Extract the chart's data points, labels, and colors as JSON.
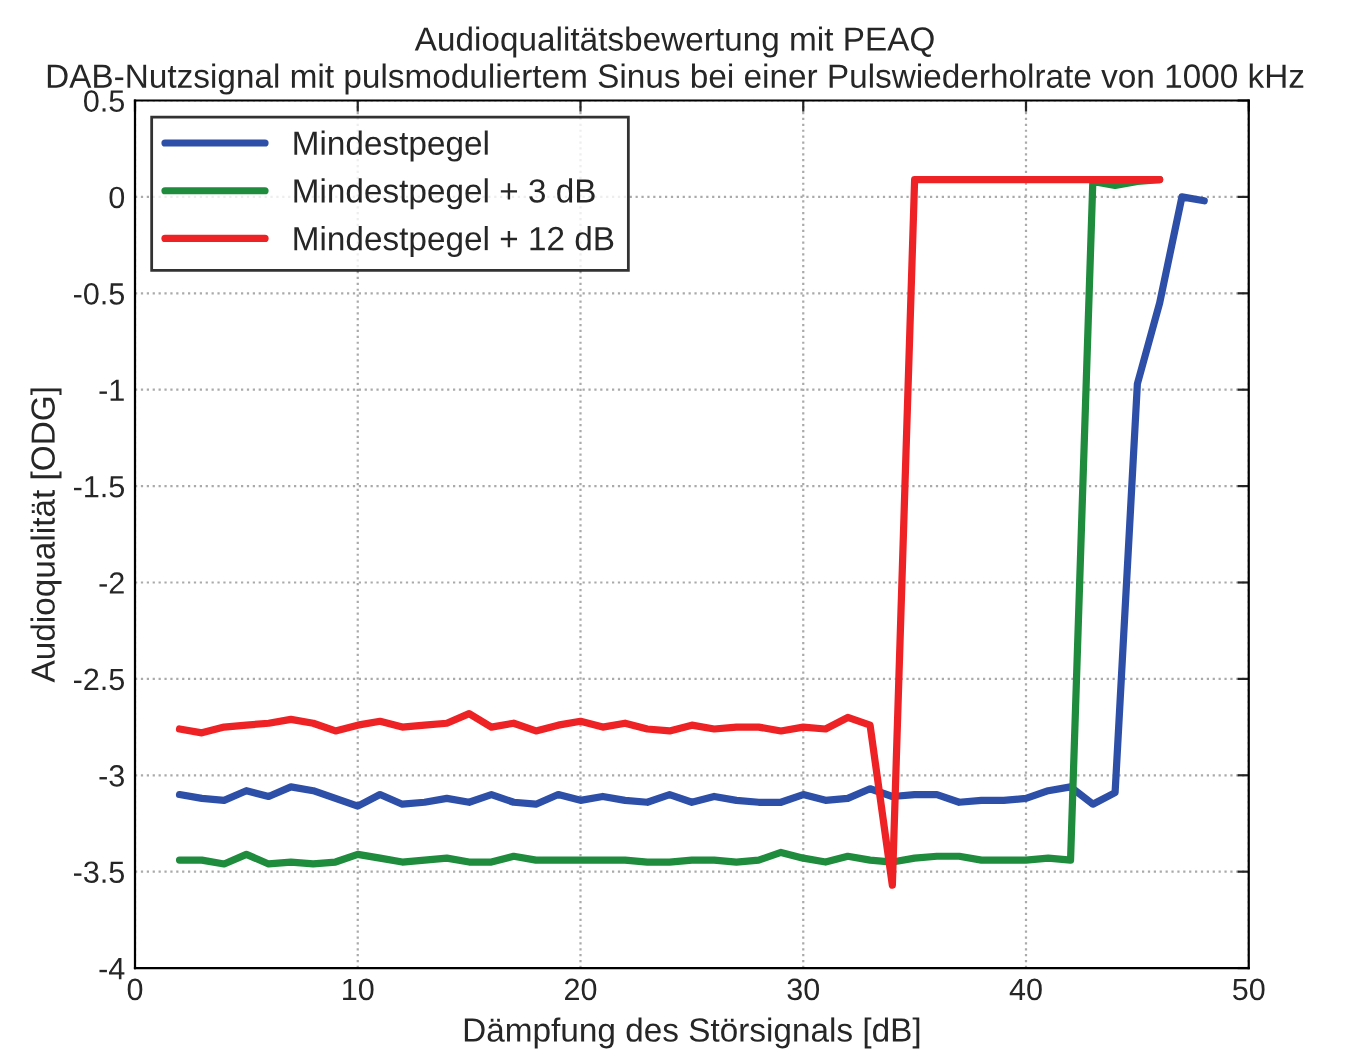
{
  "chart_data": {
    "type": "line",
    "title": "Audioqualitätsbewertung mit PEAQ",
    "subtitle": "DAB-Nutzsignal mit pulsmoduliertem Sinus bei einer Pulswiederholrate von 1000 kHz",
    "xlabel": "Dämpfung des Störsignals [dB]",
    "ylabel": "Audioqualität [ODG]",
    "xlim": [
      0,
      50
    ],
    "xticks": [
      0,
      10,
      20,
      30,
      40,
      50
    ],
    "ylim": [
      -4,
      0.5
    ],
    "yticks": [
      -4,
      -3.5,
      -3,
      -2.5,
      -2,
      -1.5,
      -1,
      -0.5,
      0,
      0.5
    ],
    "grid": true,
    "legend": "top left",
    "line_style": "solid",
    "marker": "none",
    "series": [
      {
        "name": "Mindestpegel",
        "color": "#2e4fa8",
        "x": [
          2,
          3,
          4,
          5,
          6,
          7,
          8,
          9,
          10,
          11,
          12,
          13,
          14,
          15,
          16,
          17,
          18,
          19,
          20,
          21,
          22,
          23,
          24,
          25,
          26,
          27,
          28,
          29,
          30,
          31,
          32,
          33,
          34,
          35,
          36,
          37,
          38,
          39,
          40,
          41,
          42,
          43,
          44,
          45,
          46,
          47,
          48
        ],
        "values": [
          -3.1,
          -3.12,
          -3.13,
          -3.08,
          -3.11,
          -3.06,
          -3.08,
          -3.12,
          -3.16,
          -3.1,
          -3.15,
          -3.14,
          -3.12,
          -3.14,
          -3.1,
          -3.14,
          -3.15,
          -3.1,
          -3.13,
          -3.11,
          -3.13,
          -3.14,
          -3.1,
          -3.14,
          -3.11,
          -3.13,
          -3.14,
          -3.14,
          -3.1,
          -3.13,
          -3.12,
          -3.07,
          -3.11,
          -3.1,
          -3.1,
          -3.14,
          -3.13,
          -3.13,
          -3.12,
          -3.08,
          -3.06,
          -3.15,
          -3.09,
          -0.97,
          -0.55,
          0.0,
          -0.02
        ]
      },
      {
        "name": "Mindestpegel + 3 dB",
        "color": "#1e8c3c",
        "x": [
          2,
          3,
          4,
          5,
          6,
          7,
          8,
          9,
          10,
          11,
          12,
          13,
          14,
          15,
          16,
          17,
          18,
          19,
          20,
          21,
          22,
          23,
          24,
          25,
          26,
          27,
          28,
          29,
          30,
          31,
          32,
          33,
          34,
          35,
          36,
          37,
          38,
          39,
          40,
          41,
          42,
          43,
          44,
          45,
          46
        ],
        "values": [
          -3.44,
          -3.44,
          -3.46,
          -3.41,
          -3.46,
          -3.45,
          -3.46,
          -3.45,
          -3.41,
          -3.43,
          -3.45,
          -3.44,
          -3.43,
          -3.45,
          -3.45,
          -3.42,
          -3.44,
          -3.44,
          -3.44,
          -3.44,
          -3.44,
          -3.45,
          -3.45,
          -3.44,
          -3.44,
          -3.45,
          -3.44,
          -3.4,
          -3.43,
          -3.45,
          -3.42,
          -3.44,
          -3.45,
          -3.43,
          -3.42,
          -3.42,
          -3.44,
          -3.44,
          -3.44,
          -3.43,
          -3.44,
          0.08,
          0.06,
          0.08,
          0.09
        ]
      },
      {
        "name": "Mindestpegel + 12 dB",
        "color": "#ee2124",
        "x": [
          2,
          3,
          4,
          5,
          6,
          7,
          8,
          9,
          10,
          11,
          12,
          13,
          14,
          15,
          16,
          17,
          18,
          19,
          20,
          21,
          22,
          23,
          24,
          25,
          26,
          27,
          28,
          29,
          30,
          31,
          32,
          33,
          34,
          35,
          36,
          37,
          38,
          39,
          40,
          41,
          42,
          43,
          44,
          45,
          46
        ],
        "values": [
          -2.76,
          -2.78,
          -2.75,
          -2.74,
          -2.73,
          -2.71,
          -2.73,
          -2.77,
          -2.74,
          -2.72,
          -2.75,
          -2.74,
          -2.73,
          -2.68,
          -2.75,
          -2.73,
          -2.77,
          -2.74,
          -2.72,
          -2.75,
          -2.73,
          -2.76,
          -2.77,
          -2.74,
          -2.76,
          -2.75,
          -2.75,
          -2.77,
          -2.75,
          -2.76,
          -2.7,
          -2.74,
          -3.57,
          0.09,
          0.09,
          0.09,
          0.09,
          0.09,
          0.09,
          0.09,
          0.09,
          0.09,
          0.09,
          0.09,
          0.09
        ]
      }
    ]
  }
}
